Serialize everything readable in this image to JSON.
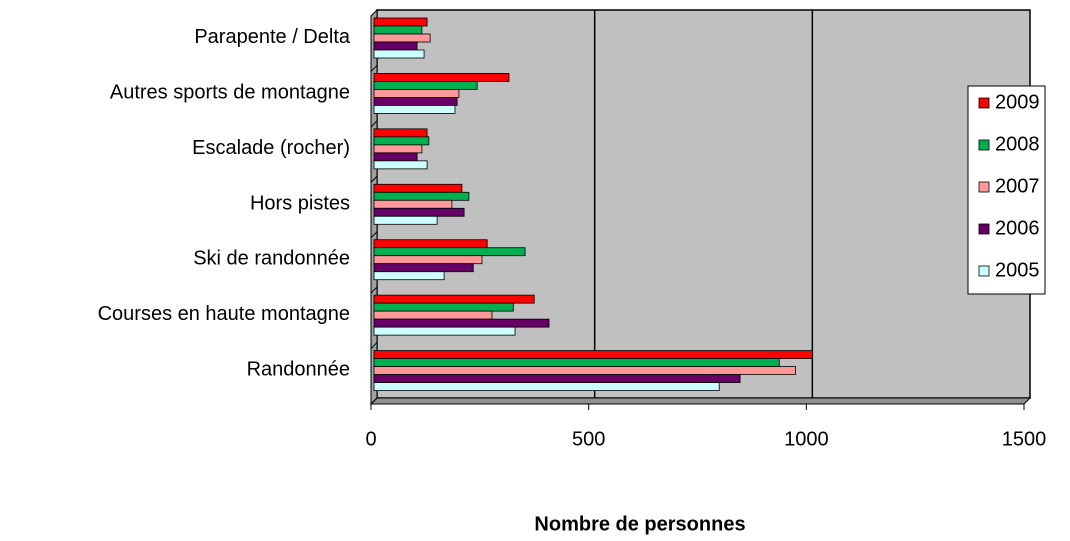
{
  "chart_data": {
    "type": "bar",
    "orientation": "horizontal",
    "x_label": "Nombre de personnes",
    "categories": [
      "Parapente / Delta",
      "Autres sports de montagne",
      "Escalade (rocher)",
      "Hors pistes",
      "Ski de randonnée",
      "Courses en haute montagne",
      "Randonnée"
    ],
    "series": [
      {
        "name": "2009",
        "color": "#ff0000",
        "values": [
          122,
          310,
          122,
          202,
          260,
          368,
          1007
        ]
      },
      {
        "name": "2008",
        "color": "#00b050",
        "values": [
          110,
          237,
          126,
          218,
          347,
          320,
          931
        ]
      },
      {
        "name": "2007",
        "color": "#ff9999",
        "values": [
          129,
          195,
          110,
          179,
          248,
          271,
          968
        ]
      },
      {
        "name": "2006",
        "color": "#660066",
        "values": [
          99,
          191,
          99,
          207,
          228,
          402,
          841
        ]
      },
      {
        "name": "2005",
        "color": "#ccffff",
        "values": [
          115,
          186,
          122,
          145,
          161,
          324,
          793
        ]
      }
    ],
    "xlim": [
      0,
      1500
    ],
    "xticks": [
      0,
      500,
      1000,
      1500
    ],
    "grid": true,
    "legend": "right"
  }
}
